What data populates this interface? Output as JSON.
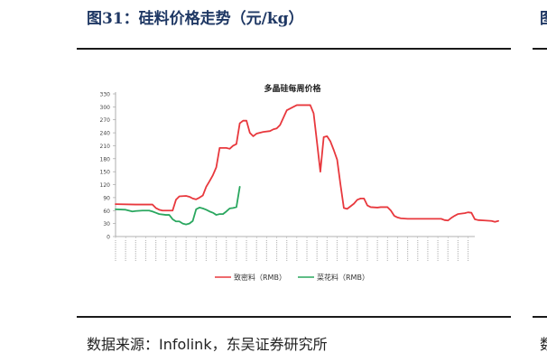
{
  "figure": {
    "title": "图31：硅料价格走势（元/kg）",
    "source": "数据来源：Infolink，东吴证券研究所",
    "right_title_fragment": "图",
    "right_source_fragment": "数"
  },
  "chart_data": {
    "type": "line",
    "title": "多晶硅每周价格",
    "ylim": [
      0,
      330
    ],
    "yticks": [
      0,
      30,
      60,
      90,
      120,
      150,
      180,
      210,
      240,
      270,
      300,
      330
    ],
    "xlabel": "",
    "ylabel": "",
    "grid": false,
    "legend": "bottom",
    "x_count": 108,
    "x_tick_labels_legible": false,
    "series": [
      {
        "name": "致密料（RMB）",
        "color": "#e8383d",
        "points": [
          [
            0,
            75
          ],
          [
            6,
            74
          ],
          [
            11,
            74
          ],
          [
            12,
            66
          ],
          [
            13,
            62
          ],
          [
            14,
            60
          ],
          [
            17,
            60
          ],
          [
            18,
            85
          ],
          [
            19,
            93
          ],
          [
            21,
            94
          ],
          [
            22,
            92
          ],
          [
            23,
            88
          ],
          [
            24,
            86
          ],
          [
            25,
            90
          ],
          [
            26,
            95
          ],
          [
            27,
            115
          ],
          [
            28,
            128
          ],
          [
            29,
            142
          ],
          [
            30,
            160
          ],
          [
            31,
            205
          ],
          [
            33,
            205
          ],
          [
            34,
            203
          ],
          [
            35,
            210
          ],
          [
            36,
            214
          ],
          [
            37,
            262
          ],
          [
            38,
            268
          ],
          [
            39,
            268
          ],
          [
            40,
            240
          ],
          [
            41,
            232
          ],
          [
            42,
            238
          ],
          [
            44,
            242
          ],
          [
            46,
            244
          ],
          [
            47,
            248
          ],
          [
            48,
            250
          ],
          [
            49,
            258
          ],
          [
            50,
            275
          ],
          [
            51,
            292
          ],
          [
            53,
            300
          ],
          [
            54,
            304
          ],
          [
            58,
            304
          ],
          [
            59,
            285
          ],
          [
            60,
            218
          ],
          [
            61,
            150
          ],
          [
            62,
            230
          ],
          [
            63,
            232
          ],
          [
            64,
            220
          ],
          [
            65,
            200
          ],
          [
            66,
            178
          ],
          [
            67,
            120
          ],
          [
            68,
            66
          ],
          [
            69,
            64
          ],
          [
            70,
            70
          ],
          [
            71,
            76
          ],
          [
            72,
            85
          ],
          [
            73,
            88
          ],
          [
            74,
            88
          ],
          [
            75,
            72
          ],
          [
            76,
            68
          ],
          [
            78,
            67
          ],
          [
            79,
            68
          ],
          [
            81,
            68
          ],
          [
            82,
            60
          ],
          [
            83,
            48
          ],
          [
            84,
            44
          ],
          [
            85,
            42
          ],
          [
            87,
            41
          ],
          [
            92,
            41
          ],
          [
            97,
            41
          ],
          [
            98,
            38
          ],
          [
            99,
            37
          ],
          [
            100,
            43
          ],
          [
            101,
            48
          ],
          [
            102,
            52
          ],
          [
            104,
            54
          ],
          [
            105,
            56
          ],
          [
            106,
            55
          ],
          [
            107,
            40
          ],
          [
            108,
            38
          ],
          [
            110,
            37
          ],
          [
            112,
            36
          ],
          [
            113,
            34
          ],
          [
            114,
            36
          ]
        ]
      },
      {
        "name": "菜花料（RMB）",
        "color": "#2aa75f",
        "points": [
          [
            0,
            63
          ],
          [
            3,
            62
          ],
          [
            5,
            58
          ],
          [
            6,
            59
          ],
          [
            8,
            60
          ],
          [
            10,
            60
          ],
          [
            11,
            58
          ],
          [
            12,
            55
          ],
          [
            13,
            52
          ],
          [
            15,
            50
          ],
          [
            16,
            50
          ],
          [
            17,
            40
          ],
          [
            18,
            35
          ],
          [
            19,
            35
          ],
          [
            20,
            30
          ],
          [
            21,
            28
          ],
          [
            22,
            30
          ],
          [
            23,
            36
          ],
          [
            24,
            63
          ],
          [
            25,
            67
          ],
          [
            26,
            65
          ],
          [
            27,
            62
          ],
          [
            28,
            58
          ],
          [
            29,
            55
          ],
          [
            30,
            50
          ],
          [
            31,
            52
          ],
          [
            32,
            52
          ],
          [
            33,
            58
          ],
          [
            34,
            65
          ],
          [
            35,
            66
          ],
          [
            36,
            68
          ],
          [
            37,
            115
          ]
        ]
      }
    ]
  }
}
